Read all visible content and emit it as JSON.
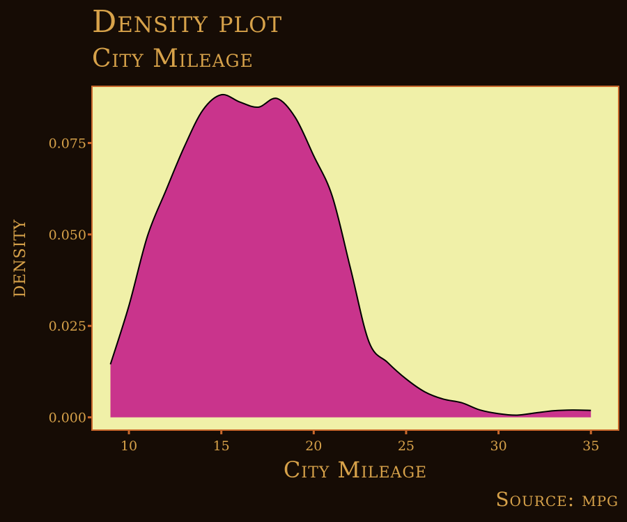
{
  "chart_data": {
    "type": "area",
    "title": "Density plot",
    "subtitle": "City Mileage",
    "caption": "Source: mpg",
    "xlabel": "City Mileage",
    "ylabel": "density",
    "xlim": [
      8,
      36.5
    ],
    "ylim": [
      -0.0035,
      0.0905
    ],
    "x_ticks": [
      10,
      15,
      20,
      25,
      30,
      35
    ],
    "y_ticks": [
      0.0,
      0.025,
      0.05,
      0.075
    ],
    "y_tick_labels": [
      "0.000",
      "0.025",
      "0.050",
      "0.075"
    ],
    "x": [
      9,
      10,
      11,
      12,
      13,
      14,
      15,
      16,
      17,
      18,
      19,
      20,
      21,
      22,
      23,
      24,
      25,
      26,
      27,
      28,
      29,
      30,
      31,
      32,
      33,
      34,
      35
    ],
    "y": [
      0.0145,
      0.0305,
      0.0495,
      0.062,
      0.074,
      0.084,
      0.0882,
      0.0862,
      0.0848,
      0.0872,
      0.082,
      0.0715,
      0.0605,
      0.0405,
      0.0205,
      0.015,
      0.0105,
      0.007,
      0.005,
      0.004,
      0.002,
      0.001,
      0.0006,
      0.0012,
      0.0018,
      0.002,
      0.0019
    ],
    "grid": false,
    "legend": "none",
    "colors": {
      "background": "#160c05",
      "panel": "#f0f0a8",
      "panel_border": "#c8682c",
      "fill": "#c9348c",
      "line": "#000000",
      "text": "#d7a24a",
      "axis": "#c8682c"
    }
  }
}
